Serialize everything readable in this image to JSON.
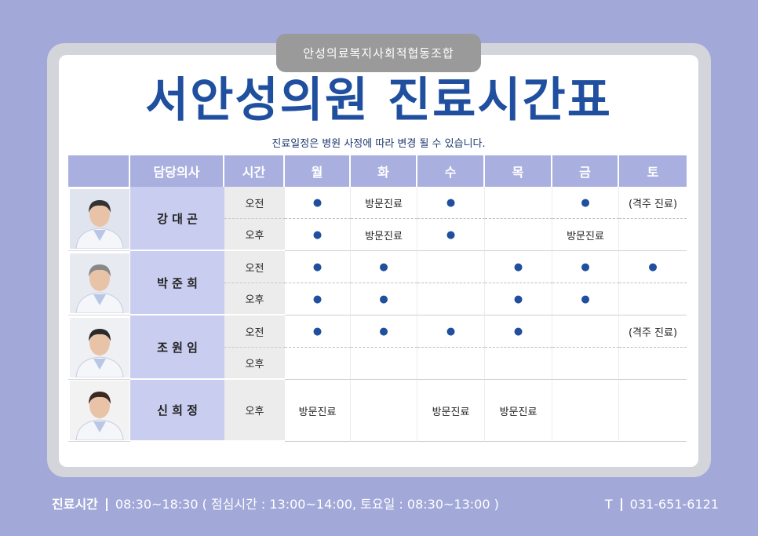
{
  "header": {
    "organization": "안성의료복지사회적협동조합",
    "title": "서안성의원 진료시간표",
    "subtitle": "진료일정은 병원 사정에 따라 변경 될 수 있습니다."
  },
  "table": {
    "columns": [
      "담당의사",
      "시간",
      "월",
      "화",
      "수",
      "목",
      "금",
      "토"
    ],
    "doctors": [
      {
        "name": "강 대 곤",
        "sessions": [
          {
            "time": "오전",
            "cells": [
              "●",
              "방문진료",
              "●",
              null,
              "●",
              "(격주 진료)"
            ]
          },
          {
            "time": "오후",
            "cells": [
              "●",
              "방문진료",
              "●",
              null,
              "방문진료",
              null
            ]
          }
        ]
      },
      {
        "name": "박 준 희",
        "sessions": [
          {
            "time": "오전",
            "cells": [
              "●",
              "●",
              null,
              "●",
              "●",
              "●"
            ]
          },
          {
            "time": "오후",
            "cells": [
              "●",
              "●",
              null,
              "●",
              "●",
              null
            ]
          }
        ]
      },
      {
        "name": "조 원 임",
        "sessions": [
          {
            "time": "오전",
            "cells": [
              "●",
              "●",
              "●",
              "●",
              null,
              "(격주 진료)"
            ]
          },
          {
            "time": "오후",
            "cells": [
              null,
              null,
              null,
              null,
              null,
              null
            ]
          }
        ]
      },
      {
        "name": "신 희 정",
        "sessions": [
          {
            "time": "오후",
            "cells": [
              "방문진료",
              null,
              "방문진료",
              "방문진료",
              null,
              null
            ]
          }
        ]
      }
    ]
  },
  "footer": {
    "label": "진료시간",
    "hours": "08:30~18:30 ( 점심시간 : 13:00~14:00, 토요일 : 08:30~13:00 )",
    "phone_label": "T",
    "phone": "031-651-6121"
  }
}
